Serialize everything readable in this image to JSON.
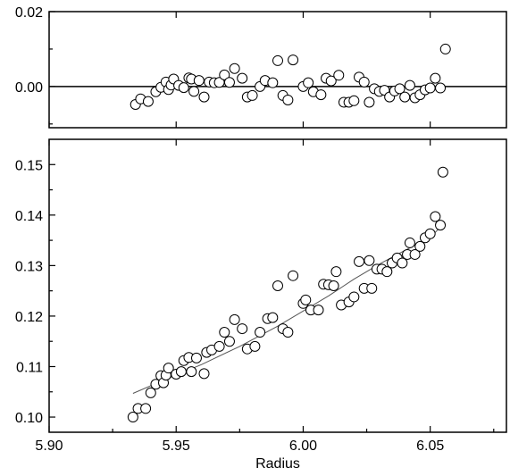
{
  "chart_data": [
    {
      "type": "scatter",
      "name_role": "residuals",
      "x_domain": [
        5.9,
        6.08
      ],
      "ylim": [
        -0.011,
        0.02
      ],
      "y_ticks": [
        0.0,
        0.02
      ],
      "y_tick_labels": [
        "0.00",
        "0.02"
      ],
      "zero_line": true,
      "points": [
        [
          5.934,
          -0.0048
        ],
        [
          5.936,
          -0.0033
        ],
        [
          5.939,
          -0.004
        ],
        [
          5.942,
          -0.0014
        ],
        [
          5.944,
          -0.0002
        ],
        [
          5.946,
          0.0012
        ],
        [
          5.947,
          -0.0008
        ],
        [
          5.948,
          0.0004
        ],
        [
          5.949,
          0.002
        ],
        [
          5.951,
          0.0003
        ],
        [
          5.953,
          -0.0003
        ],
        [
          5.955,
          0.0023
        ],
        [
          5.956,
          0.002
        ],
        [
          5.957,
          -0.0013
        ],
        [
          5.959,
          0.0016
        ],
        [
          5.961,
          -0.0028
        ],
        [
          5.963,
          0.0012
        ],
        [
          5.965,
          0.001
        ],
        [
          5.967,
          0.0011
        ],
        [
          5.969,
          0.0031
        ],
        [
          5.971,
          0.0011
        ],
        [
          5.973,
          0.0048
        ],
        [
          5.976,
          0.0022
        ],
        [
          5.978,
          -0.0028
        ],
        [
          5.98,
          -0.0024
        ],
        [
          5.983,
          0.0
        ],
        [
          5.985,
          0.0016
        ],
        [
          5.988,
          0.001
        ],
        [
          5.99,
          0.0069
        ],
        [
          5.992,
          -0.0024
        ],
        [
          5.994,
          -0.0036
        ],
        [
          5.996,
          0.0071
        ],
        [
          6.0,
          0.0
        ],
        [
          6.002,
          0.001
        ],
        [
          6.004,
          -0.0014
        ],
        [
          6.007,
          -0.0022
        ],
        [
          6.009,
          0.0022
        ],
        [
          6.011,
          0.0015
        ],
        [
          6.014,
          0.003
        ],
        [
          6.016,
          -0.0042
        ],
        [
          6.018,
          -0.0042
        ],
        [
          6.02,
          -0.0038
        ],
        [
          6.022,
          0.0025
        ],
        [
          6.024,
          0.0012
        ],
        [
          6.026,
          -0.0042
        ],
        [
          6.028,
          -0.0006
        ],
        [
          6.03,
          -0.0013
        ],
        [
          6.032,
          -0.001
        ],
        [
          6.034,
          -0.0028
        ],
        [
          6.036,
          -0.0012
        ],
        [
          6.038,
          -0.0006
        ],
        [
          6.04,
          -0.0028
        ],
        [
          6.042,
          0.0003
        ],
        [
          6.044,
          -0.003
        ],
        [
          6.046,
          -0.0022
        ],
        [
          6.048,
          -0.0009
        ],
        [
          6.05,
          -0.0004
        ],
        [
          6.052,
          0.0022
        ],
        [
          6.054,
          -0.0004
        ],
        [
          6.056,
          0.01
        ]
      ]
    },
    {
      "type": "scatter",
      "name_role": "data-with-fit",
      "xlabel": "Radius",
      "xlim": [
        5.9,
        6.08
      ],
      "x_ticks": [
        5.9,
        5.95,
        6.0,
        6.05
      ],
      "x_tick_labels": [
        "5.90",
        "5.95",
        "6.00",
        "6.05"
      ],
      "ylim": [
        0.097,
        0.155
      ],
      "y_ticks": [
        0.1,
        0.11,
        0.12,
        0.13,
        0.14,
        0.15
      ],
      "y_tick_labels": [
        "0.10",
        "0.11",
        "0.12",
        "0.13",
        "0.14",
        "0.15"
      ],
      "points": [
        [
          5.933,
          0.1
        ],
        [
          5.935,
          0.1017
        ],
        [
          5.938,
          0.1017
        ],
        [
          5.94,
          0.1048
        ],
        [
          5.942,
          0.1065
        ],
        [
          5.944,
          0.1082
        ],
        [
          5.945,
          0.1068
        ],
        [
          5.946,
          0.1083
        ],
        [
          5.947,
          0.1097
        ],
        [
          5.95,
          0.1085
        ],
        [
          5.952,
          0.109
        ],
        [
          5.953,
          0.1112
        ],
        [
          5.955,
          0.1118
        ],
        [
          5.956,
          0.109
        ],
        [
          5.958,
          0.1117
        ],
        [
          5.961,
          0.1086
        ],
        [
          5.962,
          0.1128
        ],
        [
          5.964,
          0.1133
        ],
        [
          5.967,
          0.114
        ],
        [
          5.969,
          0.1168
        ],
        [
          5.971,
          0.115
        ],
        [
          5.973,
          0.1193
        ],
        [
          5.976,
          0.1175
        ],
        [
          5.978,
          0.1135
        ],
        [
          5.981,
          0.114
        ],
        [
          5.983,
          0.1168
        ],
        [
          5.986,
          0.1195
        ],
        [
          5.988,
          0.1197
        ],
        [
          5.99,
          0.126
        ],
        [
          5.992,
          0.1175
        ],
        [
          5.994,
          0.1168
        ],
        [
          5.996,
          0.128
        ],
        [
          6.0,
          0.1225
        ],
        [
          6.001,
          0.1232
        ],
        [
          6.003,
          0.1212
        ],
        [
          6.006,
          0.1212
        ],
        [
          6.008,
          0.1263
        ],
        [
          6.01,
          0.1262
        ],
        [
          6.012,
          0.126
        ],
        [
          6.013,
          0.1288
        ],
        [
          6.015,
          0.1222
        ],
        [
          6.018,
          0.1228
        ],
        [
          6.02,
          0.1238
        ],
        [
          6.022,
          0.1308
        ],
        [
          6.024,
          0.1255
        ],
        [
          6.026,
          0.131
        ],
        [
          6.027,
          0.1255
        ],
        [
          6.029,
          0.1293
        ],
        [
          6.031,
          0.1293
        ],
        [
          6.033,
          0.1288
        ],
        [
          6.035,
          0.1305
        ],
        [
          6.037,
          0.1315
        ],
        [
          6.039,
          0.1305
        ],
        [
          6.041,
          0.1322
        ],
        [
          6.042,
          0.1345
        ],
        [
          6.044,
          0.1322
        ],
        [
          6.046,
          0.1338
        ],
        [
          6.048,
          0.1355
        ],
        [
          6.05,
          0.1363
        ],
        [
          6.052,
          0.1397
        ],
        [
          6.054,
          0.138
        ],
        [
          6.055,
          0.1485
        ]
      ],
      "fit_line": [
        [
          5.933,
          0.1047
        ],
        [
          5.945,
          0.1073
        ],
        [
          5.96,
          0.1104
        ],
        [
          5.975,
          0.114
        ],
        [
          5.99,
          0.118
        ],
        [
          6.0,
          0.121
        ],
        [
          6.01,
          0.124
        ],
        [
          6.02,
          0.1273
        ],
        [
          6.03,
          0.1303
        ],
        [
          6.04,
          0.133
        ],
        [
          6.05,
          0.1355
        ],
        [
          6.055,
          0.1382
        ]
      ]
    }
  ]
}
